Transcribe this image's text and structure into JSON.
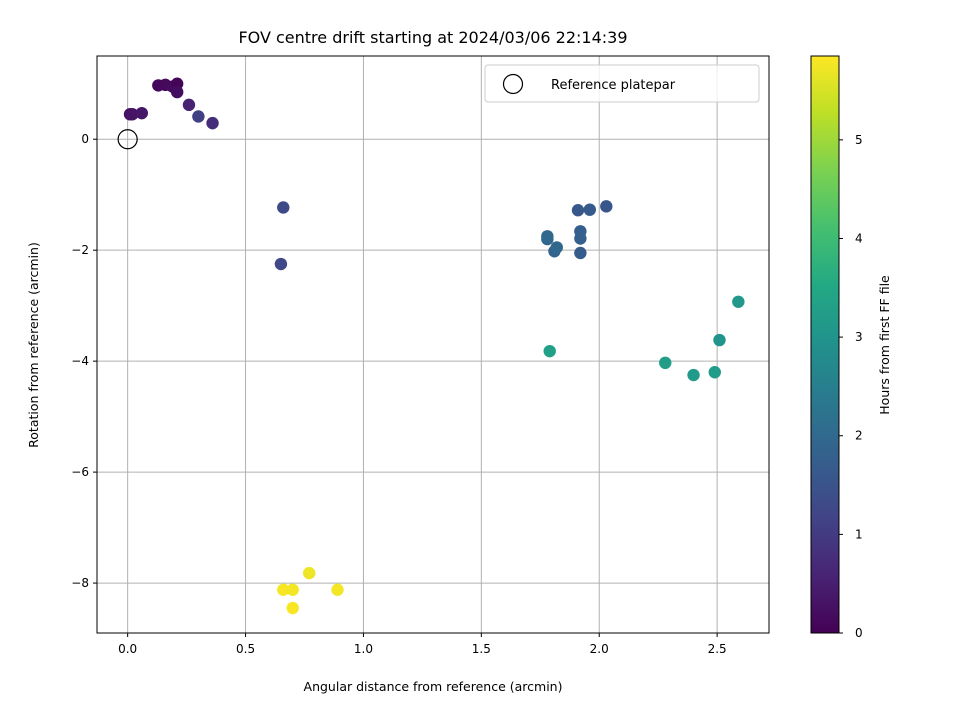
{
  "chart_data": {
    "type": "scatter",
    "title": "FOV centre drift starting at 2024/03/06 22:14:39",
    "xlabel": "Angular distance from reference (arcmin)",
    "ylabel": "Rotation from reference (arcmin)",
    "xlim": [
      -0.13,
      2.72
    ],
    "ylim": [
      -8.9,
      1.5
    ],
    "xticks": [
      0.0,
      0.5,
      1.0,
      1.5,
      2.0,
      2.5
    ],
    "xtick_labels": [
      "0.0",
      "0.5",
      "1.0",
      "1.5",
      "2.0",
      "2.5"
    ],
    "yticks": [
      0,
      -2,
      -4,
      -6,
      -8
    ],
    "ytick_labels": [
      "0",
      "−2",
      "−4",
      "−6",
      "−8"
    ],
    "grid": true,
    "legend": {
      "placement": "top-right",
      "entries": [
        "Reference platepar"
      ]
    },
    "reference_point": {
      "x": 0.0,
      "y": 0.0,
      "marker": "open-circle"
    },
    "colorbar": {
      "label": "Hours from first FF file",
      "range": [
        0,
        5.85
      ],
      "ticks": [
        0,
        1,
        2,
        3,
        4,
        5
      ],
      "tick_labels": [
        "0",
        "1",
        "2",
        "3",
        "4",
        "5"
      ],
      "colormap": "viridis"
    },
    "points": [
      {
        "x": 0.01,
        "y": 0.45,
        "t": 0.25
      },
      {
        "x": 0.02,
        "y": 0.45,
        "t": 0.3
      },
      {
        "x": 0.06,
        "y": 0.47,
        "t": 0.35
      },
      {
        "x": 0.13,
        "y": 0.97,
        "t": 0.1
      },
      {
        "x": 0.16,
        "y": 0.98,
        "t": 0.12
      },
      {
        "x": 0.19,
        "y": 0.95,
        "t": 0.18
      },
      {
        "x": 0.21,
        "y": 1.0,
        "t": 0.05
      },
      {
        "x": 0.21,
        "y": 0.85,
        "t": 0.2
      },
      {
        "x": 0.26,
        "y": 0.62,
        "t": 0.55
      },
      {
        "x": 0.3,
        "y": 0.41,
        "t": 1.1
      },
      {
        "x": 0.36,
        "y": 0.29,
        "t": 0.75
      },
      {
        "x": 0.66,
        "y": -1.23,
        "t": 1.3
      },
      {
        "x": 0.65,
        "y": -2.25,
        "t": 1.25
      },
      {
        "x": 1.78,
        "y": -1.8,
        "t": 1.9
      },
      {
        "x": 1.78,
        "y": -1.75,
        "t": 2.0
      },
      {
        "x": 1.81,
        "y": -2.02,
        "t": 1.85
      },
      {
        "x": 1.82,
        "y": -1.95,
        "t": 1.95
      },
      {
        "x": 1.91,
        "y": -1.28,
        "t": 1.6
      },
      {
        "x": 1.92,
        "y": -1.66,
        "t": 1.75
      },
      {
        "x": 1.92,
        "y": -1.79,
        "t": 1.8
      },
      {
        "x": 1.92,
        "y": -2.05,
        "t": 1.7
      },
      {
        "x": 1.96,
        "y": -1.27,
        "t": 1.65
      },
      {
        "x": 2.03,
        "y": -1.21,
        "t": 1.55
      },
      {
        "x": 1.79,
        "y": -3.82,
        "t": 3.3
      },
      {
        "x": 2.28,
        "y": -4.03,
        "t": 3.25
      },
      {
        "x": 2.4,
        "y": -4.25,
        "t": 3.15
      },
      {
        "x": 2.49,
        "y": -4.2,
        "t": 3.2
      },
      {
        "x": 2.51,
        "y": -3.62,
        "t": 3.0
      },
      {
        "x": 2.59,
        "y": -2.93,
        "t": 3.1
      },
      {
        "x": 0.66,
        "y": -8.12,
        "t": 5.8
      },
      {
        "x": 0.7,
        "y": -8.12,
        "t": 5.75
      },
      {
        "x": 0.7,
        "y": -8.45,
        "t": 5.8
      },
      {
        "x": 0.77,
        "y": -7.82,
        "t": 5.7
      },
      {
        "x": 0.89,
        "y": -8.12,
        "t": 5.75
      }
    ]
  }
}
